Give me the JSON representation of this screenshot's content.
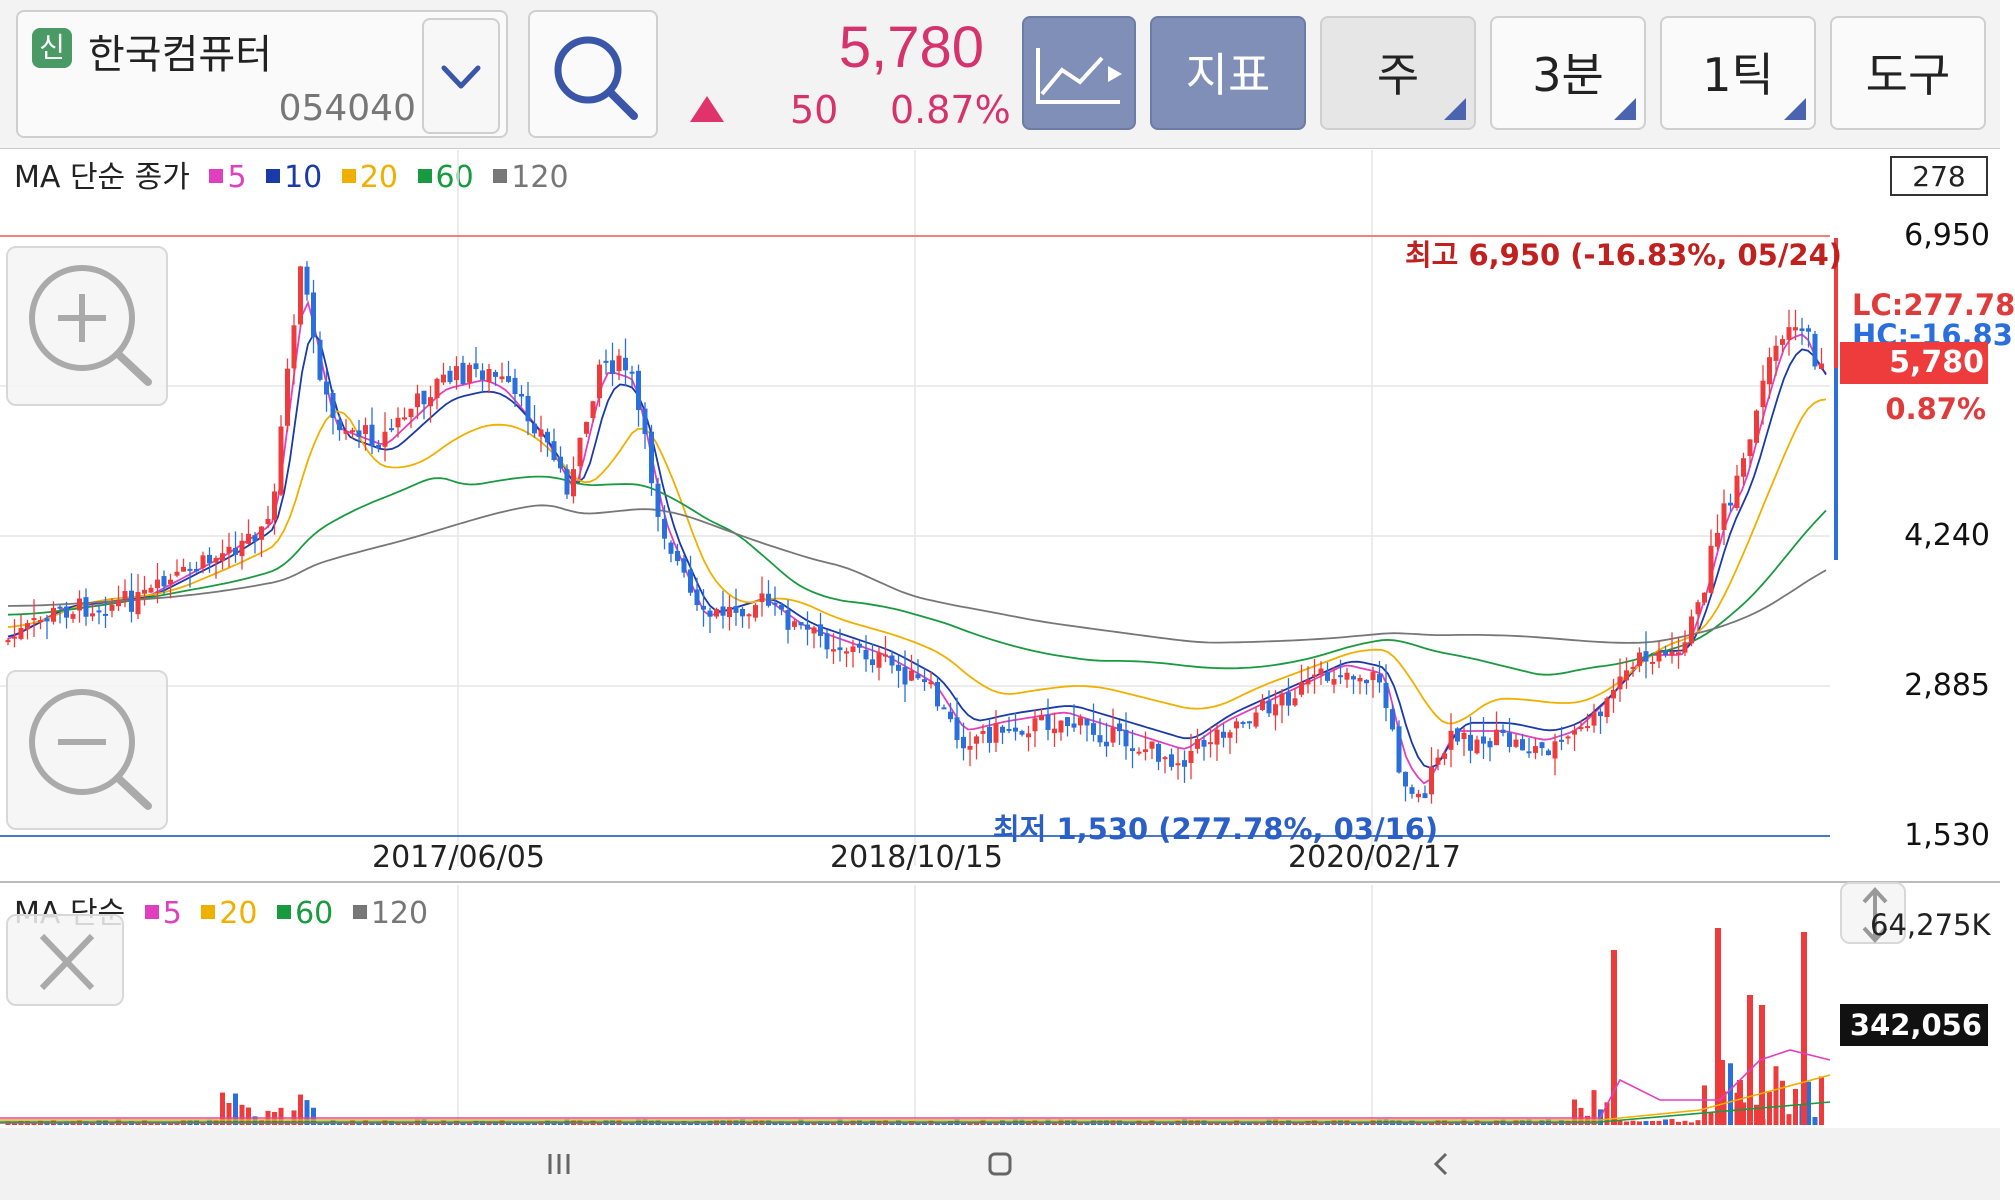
{
  "header": {
    "badge": "신",
    "stock_name": "한국컴퓨터",
    "stock_code": "054040",
    "price": "5,780",
    "change": "50",
    "change_pct": "0.87%",
    "buttons": {
      "indicator": "지표",
      "period": "주",
      "min3": "3분",
      "tick1": "1틱",
      "tools": "도구"
    },
    "icons": {
      "badge": "securities-badge-icon",
      "dropdown": "chevron-down-icon",
      "search": "search-icon",
      "chart_type": "line-chart-icon",
      "change_dir": "up-triangle-icon"
    }
  },
  "price_chart": {
    "legend_title": "MA 단순 종가",
    "ma_items": [
      {
        "label": "5",
        "color": "#e040c0"
      },
      {
        "label": "10",
        "color": "#1a3aa8"
      },
      {
        "label": "20",
        "color": "#f0b000"
      },
      {
        "label": "60",
        "color": "#1a9a40"
      },
      {
        "label": "120",
        "color": "#777777"
      }
    ],
    "top_box": "278",
    "y_labels": [
      "6,950",
      "4,240",
      "2,885",
      "1,530"
    ],
    "x_labels": [
      "2017/06/05",
      "2018/10/15",
      "2020/02/17"
    ],
    "high_note": "최고 6,950 (-16.83%, 05/24)",
    "low_note": "최저 1,530 (277.78%, 03/16)",
    "lc_label": "LC:277.78",
    "hc_label": "HC:-16.83",
    "current_label": "5,780",
    "current_pct": "0.87%",
    "colors": {
      "up": "#ee3b3b",
      "down": "#2a6fdb"
    }
  },
  "volume_chart": {
    "legend_title": "MA 단순",
    "ma_items": [
      {
        "label": "5",
        "color": "#e040c0"
      },
      {
        "label": "20",
        "color": "#f0b000"
      },
      {
        "label": "60",
        "color": "#1a9a40"
      },
      {
        "label": "120",
        "color": "#777777"
      }
    ],
    "max_label": "64,275K",
    "current_label": "342,056",
    "icons": {
      "close": "close-icon",
      "resize": "vertical-resize-icon"
    }
  },
  "zoom": {
    "in_icon": "zoom-in-icon",
    "out_icon": "zoom-out-icon"
  },
  "navbar": {
    "icons": [
      "recent-apps-icon",
      "home-icon",
      "back-icon"
    ]
  }
}
